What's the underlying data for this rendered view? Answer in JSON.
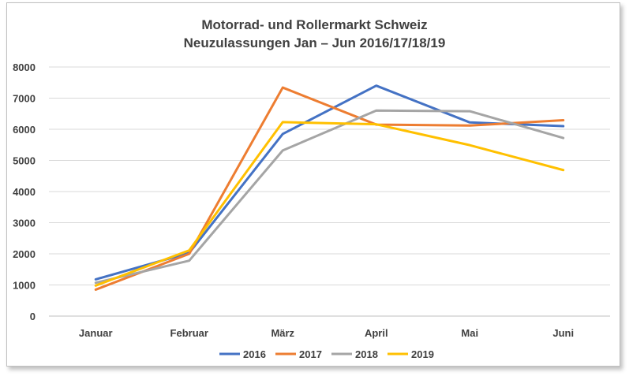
{
  "chart_data": {
    "type": "line",
    "title": "Motorrad- und Rollermarkt Schweiz",
    "subtitle": "Neuzulassungen Jan – Jun 2016/17/18/19",
    "xlabel": "",
    "ylabel": "",
    "categories": [
      "Januar",
      "Februar",
      "März",
      "April",
      "Mai",
      "Juni"
    ],
    "ylim": [
      0,
      8000
    ],
    "yticks": [
      0,
      1000,
      2000,
      3000,
      4000,
      5000,
      6000,
      7000,
      8000
    ],
    "grid": true,
    "legend_position": "bottom",
    "series": [
      {
        "name": "2016",
        "color": "#4472c4",
        "values": [
          1180,
          2030,
          5850,
          7400,
          6220,
          6100
        ]
      },
      {
        "name": "2017",
        "color": "#ed7d31",
        "values": [
          850,
          2000,
          7340,
          6150,
          6120,
          6290
        ]
      },
      {
        "name": "2018",
        "color": "#a5a5a5",
        "values": [
          1070,
          1780,
          5320,
          6600,
          6580,
          5720
        ]
      },
      {
        "name": "2019",
        "color": "#ffc000",
        "values": [
          980,
          2110,
          6230,
          6160,
          5490,
          4690
        ]
      }
    ]
  }
}
